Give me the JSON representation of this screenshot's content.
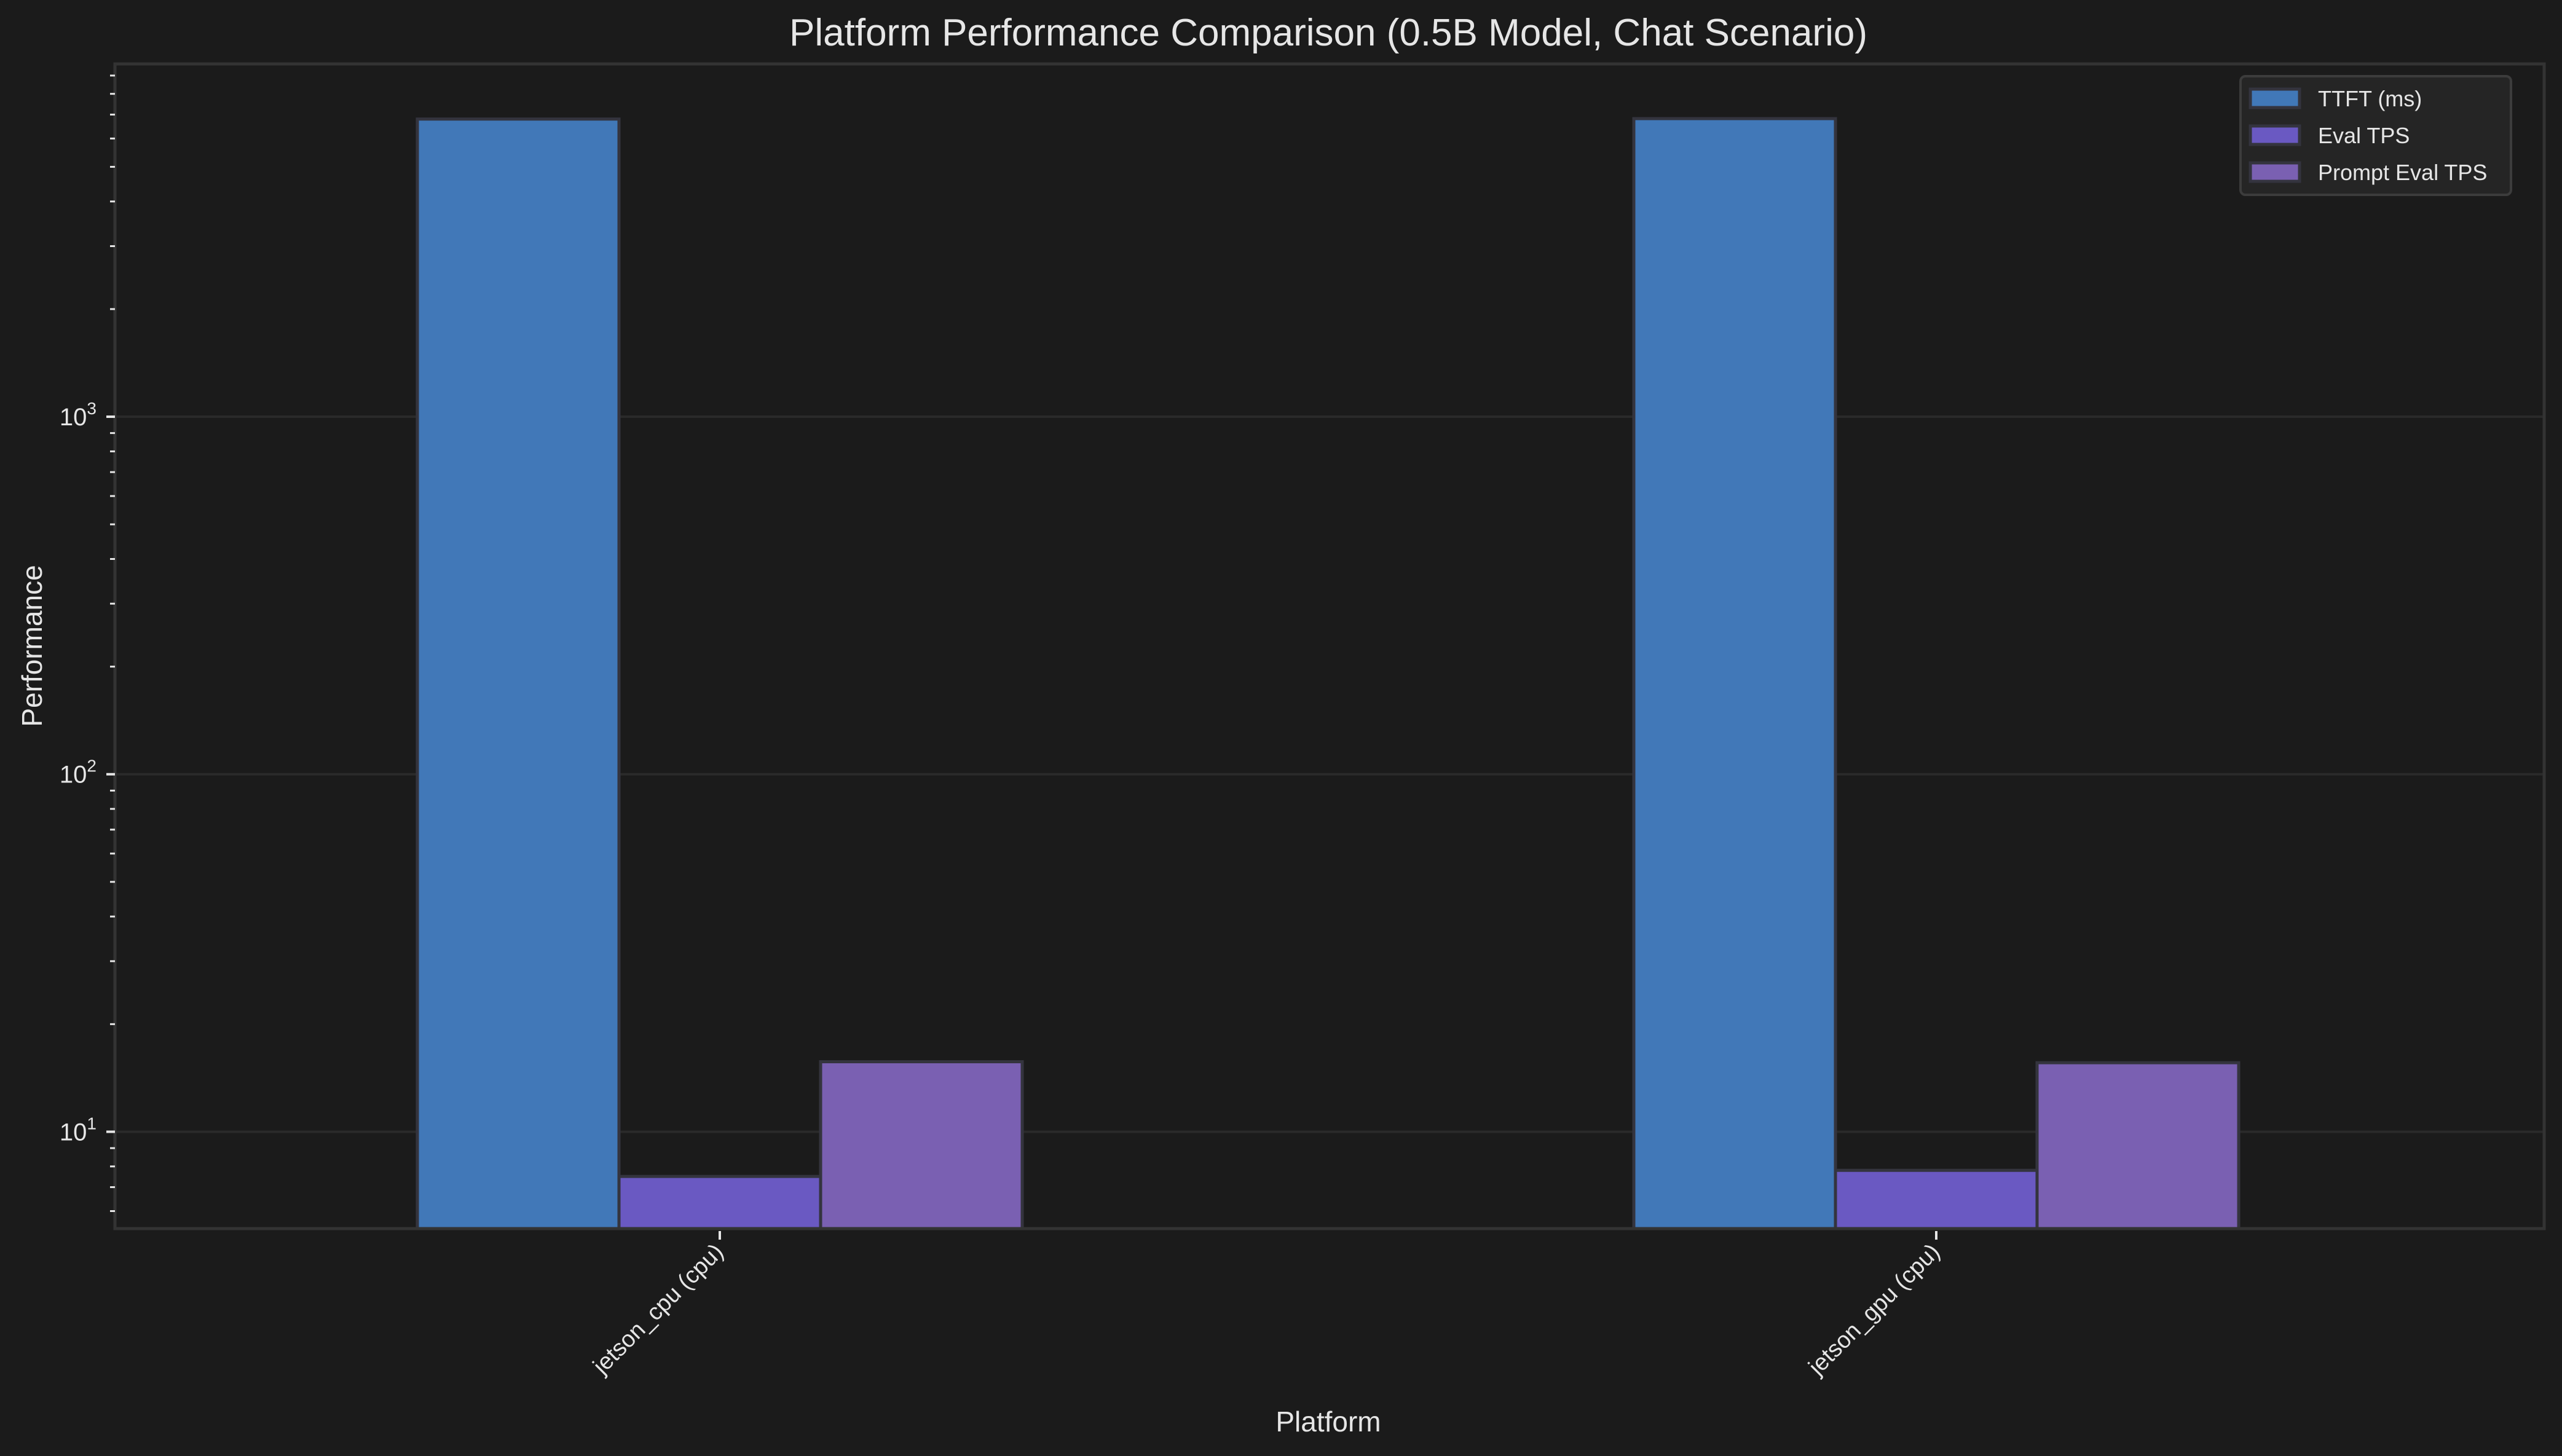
{
  "chart_data": {
    "type": "bar",
    "title": "Platform Performance Comparison (0.5B Model, Chat Scenario)",
    "xlabel": "Platform",
    "ylabel": "Performance",
    "yscale": "log",
    "ylim": [
      5.36,
      9700
    ],
    "yticks": [
      {
        "value": 10,
        "base": "10",
        "exp": "1"
      },
      {
        "value": 100,
        "base": "10",
        "exp": "2"
      },
      {
        "value": 1000,
        "base": "10",
        "exp": "3"
      }
    ],
    "grid": true,
    "legend_position": "upper right",
    "categories": [
      "jetson_cpu (cpu)",
      "jetson_gpu (cpu)"
    ],
    "series": [
      {
        "name": "TTFT (ms)",
        "color": "#4178b8",
        "values": [
          6800,
          6820
        ]
      },
      {
        "name": "Eval TPS",
        "color": "#6a59c2",
        "values": [
          7.5,
          7.8
        ]
      },
      {
        "name": "Prompt Eval TPS",
        "color": "#7a60b2",
        "values": [
          15.7,
          15.6
        ]
      }
    ]
  },
  "colors": {
    "background": "#1b1b1b",
    "axes_edge": "#333333",
    "grid": "#2a2a2a",
    "bar_edge": "#34343e",
    "text": "#e6e6e6",
    "legend_bg": "#252525",
    "legend_edge": "#3c3c3c"
  }
}
